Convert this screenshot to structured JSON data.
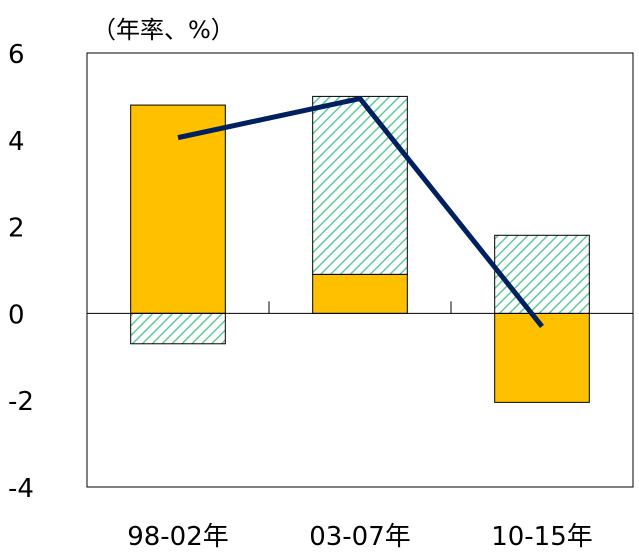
{
  "chart_data": {
    "type": "bar",
    "stacked": true,
    "unit_label": "（年率、%）",
    "categories": [
      "98-02年",
      "03-07年",
      "10-15年"
    ],
    "series": [
      {
        "kind": "bar",
        "color": "#FFC000",
        "pattern": "none",
        "values": [
          4.8,
          0.9,
          -2.05
        ]
      },
      {
        "kind": "bar",
        "color": "#5FCB9A",
        "pattern": "diagonal-hatch",
        "values": [
          -0.7,
          4.1,
          1.8
        ]
      },
      {
        "kind": "line",
        "color": "#002060",
        "values": [
          4.05,
          4.95,
          -0.3
        ]
      }
    ],
    "ylim": [
      -4,
      6
    ],
    "yticks": [
      6,
      4,
      2,
      0,
      -2,
      -4
    ],
    "grid": false,
    "legend": "none"
  }
}
